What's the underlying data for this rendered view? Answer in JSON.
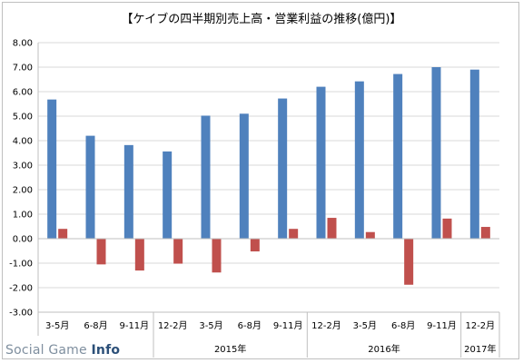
{
  "chart_data": {
    "type": "bar",
    "title": "【ケイブの四半期別売上高・営業利益の推移(億円)】",
    "categories": [
      "3-5月",
      "6-8月",
      "9-11月",
      "12-2月",
      "3-5月",
      "6-8月",
      "9-11月",
      "12-2月",
      "3-5月",
      "6-8月",
      "9-11月",
      "12-2月"
    ],
    "groups": [
      {
        "label": "2015年",
        "start": 3,
        "end": 6
      },
      {
        "label": "2016年",
        "start": 7,
        "end": 10
      },
      {
        "label": "2017年",
        "start": 11,
        "end": 11
      }
    ],
    "series": [
      {
        "color": "#4f81bd",
        "values": [
          5.68,
          4.2,
          3.82,
          3.56,
          5.02,
          5.1,
          5.72,
          6.2,
          6.42,
          6.72,
          7.0,
          6.9
        ]
      },
      {
        "color": "#c0504d",
        "values": [
          0.4,
          -1.05,
          -1.3,
          -1.02,
          -1.38,
          -0.52,
          0.4,
          0.85,
          0.27,
          -1.88,
          0.82,
          0.48
        ]
      }
    ],
    "ylim": [
      -3.0,
      8.0
    ],
    "yticks": [
      "-3.00",
      "-2.00",
      "-1.00",
      "0.00",
      "1.00",
      "2.00",
      "3.00",
      "4.00",
      "5.00",
      "6.00",
      "7.00",
      "8.00"
    ],
    "grid": true
  },
  "watermark": {
    "prefix": "Social Game ",
    "brand": "Info"
  }
}
